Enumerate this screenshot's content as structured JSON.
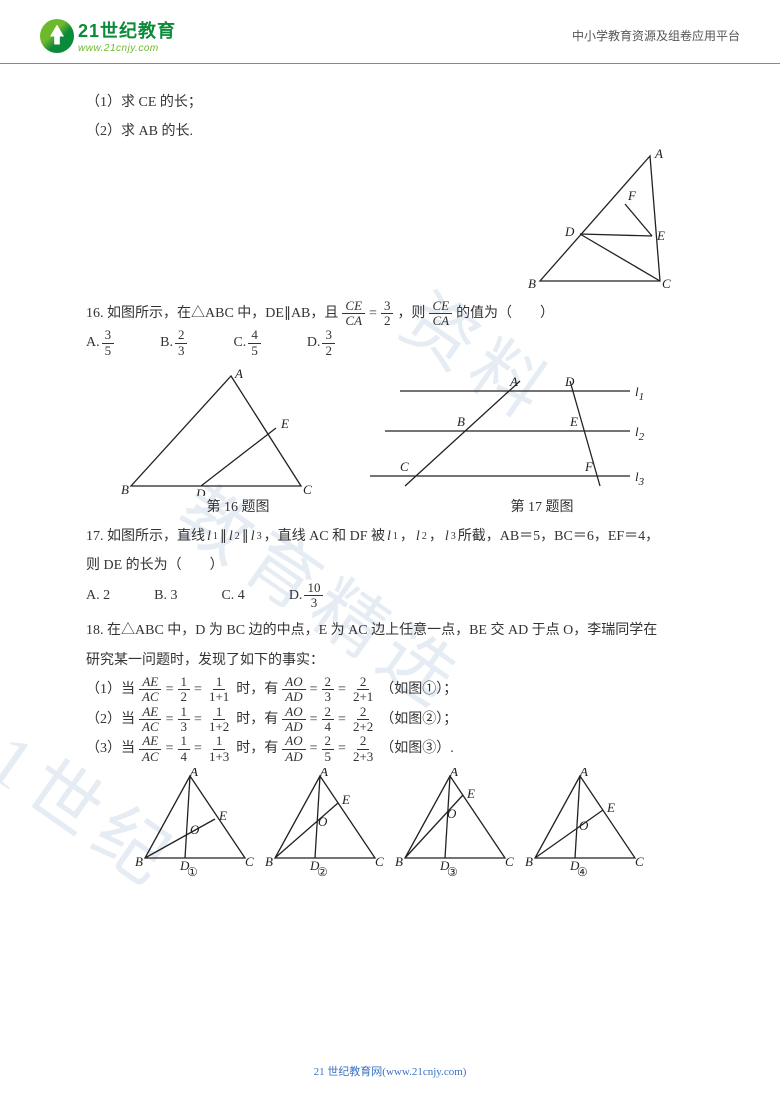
{
  "header": {
    "logo_cn": "21世纪教育",
    "logo_url": "www.21cnjy.com",
    "tagline": "中小学教育资源及组卷应用平台"
  },
  "watermark": {
    "t1": "资料",
    "t2": "教育精选",
    "t3": "21世纪"
  },
  "q15": {
    "sub1": "（1）求 CE 的长；",
    "sub2": "（2）求 AB 的长.",
    "labels": {
      "A": "A",
      "B": "B",
      "C": "C",
      "D": "D",
      "E": "E",
      "F": "F"
    }
  },
  "q16": {
    "stem_a": "16. 如图所示，在△ABC 中，DE∥AB，且",
    "frac1_num": "CE",
    "frac1_den": "CA",
    "eq": "=",
    "frac2_num": "3",
    "frac2_den": "2",
    "stem_b": "，则",
    "frac3_num": "CE",
    "frac3_den": "CA",
    "stem_c": "的值为（　　）",
    "options": {
      "A_label": "A.",
      "A_num": "3",
      "A_den": "5",
      "B_label": "B.",
      "B_num": "2",
      "B_den": "3",
      "C_label": "C.",
      "C_num": "4",
      "C_den": "5",
      "D_label": "D.",
      "D_num": "3",
      "D_den": "2"
    },
    "caption": "第 16 题图",
    "labels": {
      "A": "A",
      "B": "B",
      "C": "C",
      "D": "D",
      "E": "E"
    }
  },
  "q17": {
    "caption": "第 17 题图",
    "labels": {
      "A": "A",
      "B": "B",
      "C": "C",
      "D": "D",
      "E": "E",
      "F": "F",
      "l1": "l",
      "s1": "1",
      "l2": "l",
      "s2": "2",
      "l3": "l",
      "s3": "3"
    },
    "stem_a": "17. 如图所示，直线",
    "lpar": "l",
    "s1": "1",
    "s2": "2",
    "s3": "3",
    "par": "∥",
    "stem_b": "，直线 AC 和 DF 被",
    "comma": "，",
    "stem_c": "所截，AB＝5，BC＝6，EF＝4，",
    "stem_d": "则 DE 的长为（　　）",
    "options": {
      "A": "A. 2",
      "B": "B. 3",
      "C": "C. 4",
      "D_label": "D.",
      "D_num": "10",
      "D_den": "3"
    }
  },
  "q18": {
    "stem_a": "18. 在△ABC 中，D 为 BC 边的中点，E 为 AC 边上任意一点，BE 交 AD 于点 O，李瑞同学在",
    "stem_b": "研究某一问题时，发现了如下的事实：",
    "rows": [
      {
        "idx": "（1）当",
        "f1n": "AE",
        "f1d": "AC",
        "eq1": "=",
        "f2n": "1",
        "f2d": "2",
        "eq2": "=",
        "f3n": "1",
        "f3d": "1+1",
        "mid": "时，有",
        "g1n": "AO",
        "g1d": "AD",
        "eq3": "=",
        "g2n": "2",
        "g2d": "3",
        "eq4": "=",
        "g3n": "2",
        "g3d": "2+1",
        "tail": "（如图①）；"
      },
      {
        "idx": "（2）当",
        "f1n": "AE",
        "f1d": "AC",
        "eq1": "=",
        "f2n": "1",
        "f2d": "3",
        "eq2": "=",
        "f3n": "1",
        "f3d": "1+2",
        "mid": "时，有",
        "g1n": "AO",
        "g1d": "AD",
        "eq3": "=",
        "g2n": "2",
        "g2d": "4",
        "eq4": "=",
        "g3n": "2",
        "g3d": "2+2",
        "tail": "（如图②）；"
      },
      {
        "idx": "（3）当",
        "f1n": "AE",
        "f1d": "AC",
        "eq1": "=",
        "f2n": "1",
        "f2d": "4",
        "eq2": "=",
        "f3n": "1",
        "f3d": "1+3",
        "mid": "时，有",
        "g1n": "AO",
        "g1d": "AD",
        "eq3": "=",
        "g2n": "2",
        "g2d": "5",
        "eq4": "=",
        "g3n": "2",
        "g3d": "2+3",
        "tail": "（如图③）."
      }
    ],
    "figlabels": {
      "A": "A",
      "B": "B",
      "C": "C",
      "D": "D",
      "E": "E",
      "O": "O",
      "c1": "①",
      "c2": "②",
      "c3": "③",
      "c4": "④"
    }
  },
  "footer": "21 世纪教育网(www.21cnjy.com)"
}
